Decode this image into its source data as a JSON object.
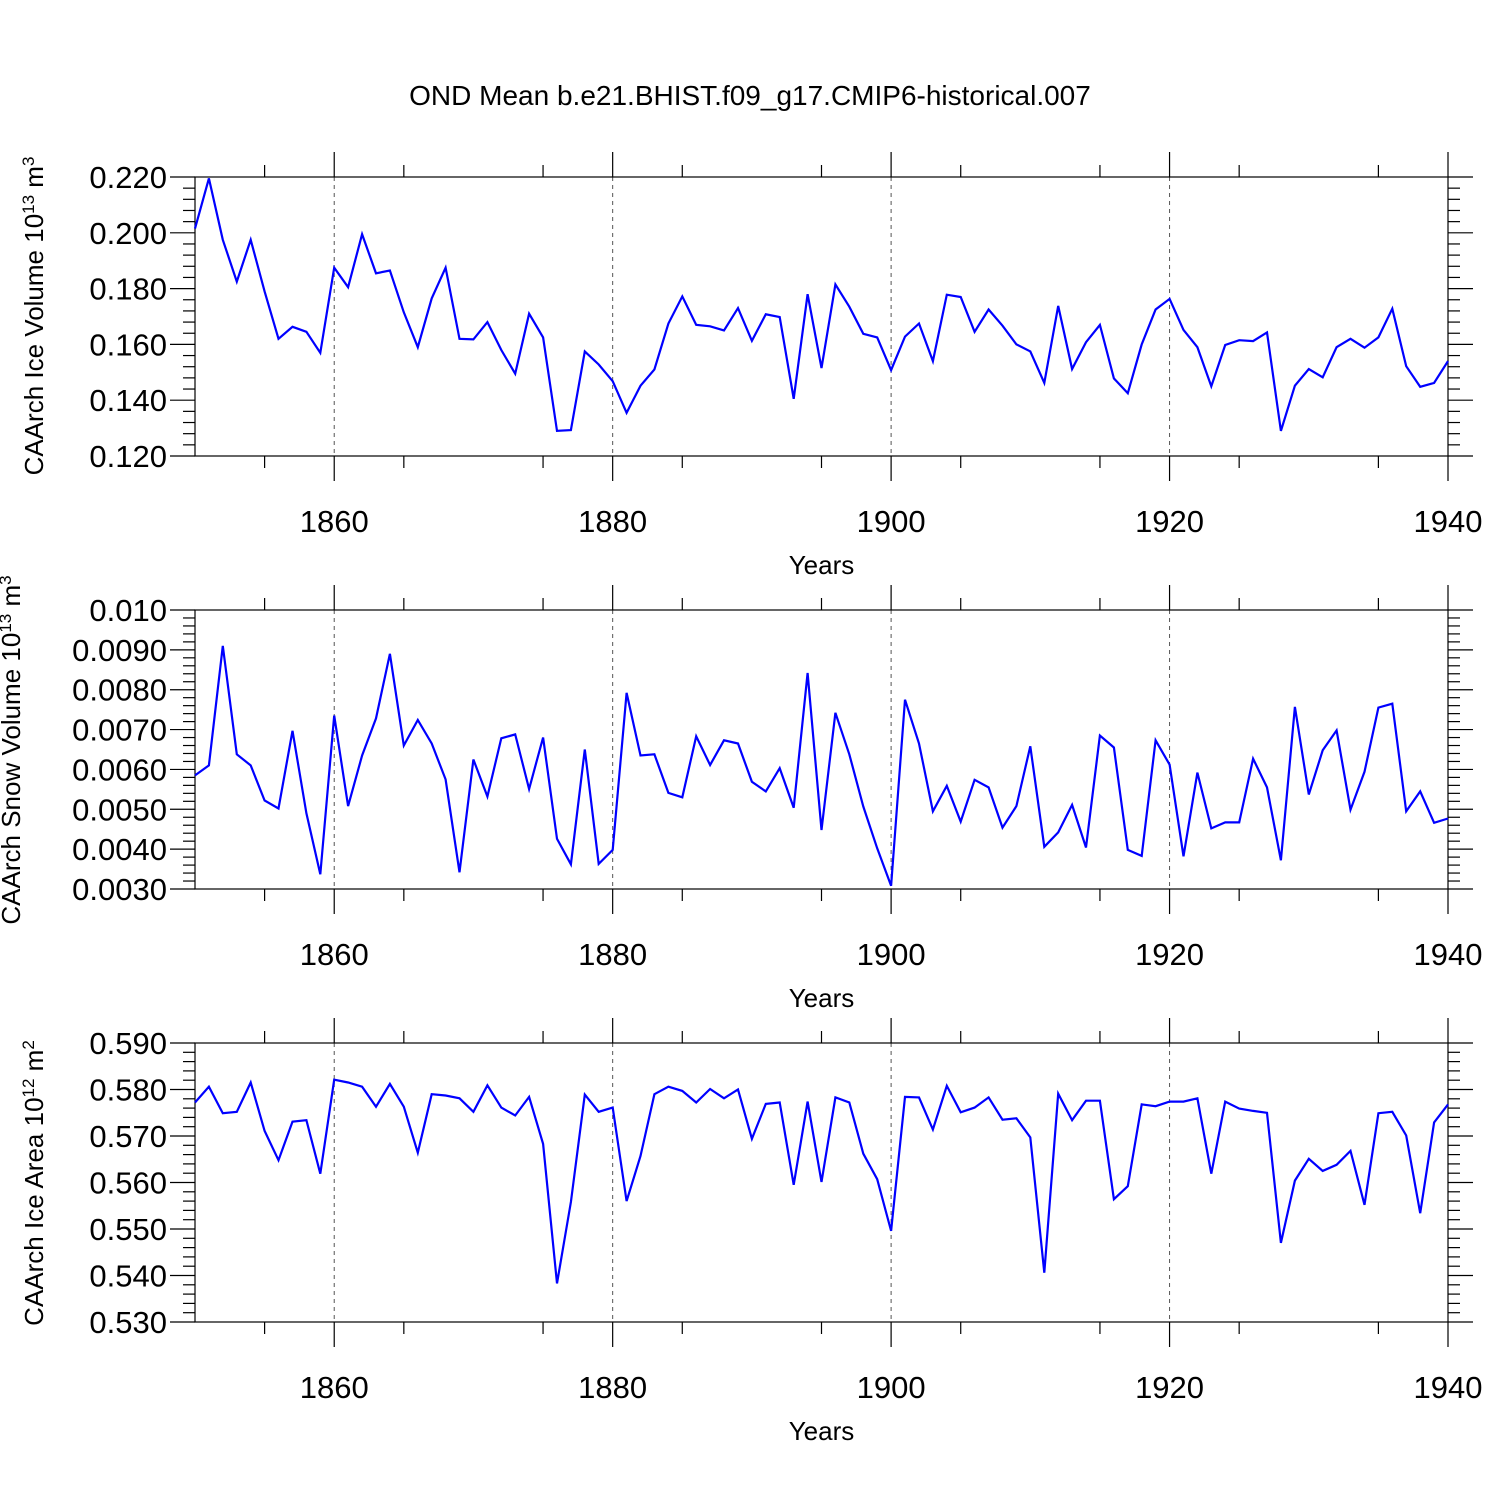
{
  "title": "OND Mean b.e21.BHIST.f09_g17.CMIP6-historical.007",
  "chart_data": [
    {
      "type": "line",
      "name": "ice-volume",
      "ylabel": "CAArch Ice Volume 10",
      "ylabel_exp": "13",
      "ylabel_unit": " m",
      "ylabel_unit_exp": "3",
      "xlabel": "Years",
      "xlim": [
        1850,
        1940
      ],
      "ylim": [
        0.12,
        0.22
      ],
      "x_ticks": [
        1860,
        1880,
        1900,
        1920,
        1940
      ],
      "x_tick_labels": [
        "1860",
        "1880",
        "1900",
        "1920",
        "1940"
      ],
      "y_ticks": [
        0.12,
        0.14,
        0.16,
        0.18,
        0.2,
        0.22
      ],
      "y_tick_labels": [
        "0.120",
        "0.140",
        "0.160",
        "0.180",
        "0.200",
        "0.220"
      ],
      "color": "#0000ff",
      "x_start": 1850,
      "values": [
        0.2015,
        0.2195,
        0.1975,
        0.1825,
        0.1975,
        0.179,
        0.162,
        0.1663,
        0.1645,
        0.157,
        0.1875,
        0.1805,
        0.1995,
        0.1855,
        0.1865,
        0.1715,
        0.159,
        0.1765,
        0.1875,
        0.162,
        0.1618,
        0.168,
        0.158,
        0.1495,
        0.171,
        0.1625,
        0.129,
        0.1293,
        0.1575,
        0.1528,
        0.1468,
        0.1355,
        0.1452,
        0.151,
        0.1675,
        0.1772,
        0.167,
        0.1665,
        0.165,
        0.173,
        0.1613,
        0.1708,
        0.1698,
        0.1405,
        0.178,
        0.1515,
        0.1815,
        0.1735,
        0.1638,
        0.1625,
        0.1508,
        0.1628,
        0.1675,
        0.154,
        0.1778,
        0.177,
        0.1645,
        0.1725,
        0.1667,
        0.16,
        0.1575,
        0.1462,
        0.1738,
        0.1512,
        0.1608,
        0.167,
        0.1478,
        0.1425,
        0.16,
        0.1725,
        0.1763,
        0.1652,
        0.159,
        0.145,
        0.1598,
        0.1615,
        0.1612,
        0.1643,
        0.129,
        0.1452,
        0.1512,
        0.1482,
        0.159,
        0.162,
        0.1588,
        0.1625,
        0.1728,
        0.1522,
        0.1448,
        0.1462,
        0.154
      ]
    },
    {
      "type": "line",
      "name": "snow-volume",
      "ylabel": "CAArch Snow Volume 10",
      "ylabel_exp": "13",
      "ylabel_unit": " m",
      "ylabel_unit_exp": "3",
      "xlabel": "Years",
      "xlim": [
        1850,
        1940
      ],
      "ylim": [
        0.003,
        0.01
      ],
      "x_ticks": [
        1860,
        1880,
        1900,
        1920,
        1940
      ],
      "x_tick_labels": [
        "1860",
        "1880",
        "1900",
        "1920",
        "1940"
      ],
      "y_ticks": [
        0.003,
        0.004,
        0.005,
        0.006,
        0.007,
        0.008,
        0.009,
        0.01
      ],
      "y_tick_labels": [
        "0.0030",
        "0.0040",
        "0.0050",
        "0.0060",
        "0.0070",
        "0.0080",
        "0.0090",
        "0.010"
      ],
      "color": "#0000ff",
      "x_start": 1850,
      "values": [
        0.00585,
        0.0061,
        0.0091,
        0.00638,
        0.0061,
        0.00522,
        0.00502,
        0.00697,
        0.0049,
        0.00337,
        0.00735,
        0.00508,
        0.00635,
        0.00728,
        0.0089,
        0.0066,
        0.00724,
        0.00665,
        0.00575,
        0.00342,
        0.00625,
        0.00532,
        0.00678,
        0.00688,
        0.00551,
        0.0068,
        0.00426,
        0.00362,
        0.0065,
        0.00363,
        0.00398,
        0.00792,
        0.00635,
        0.00638,
        0.00541,
        0.0053,
        0.00683,
        0.00611,
        0.00673,
        0.00665,
        0.00569,
        0.00545,
        0.00603,
        0.00504,
        0.00842,
        0.00448,
        0.00742,
        0.00638,
        0.00507,
        0.00402,
        0.00308,
        0.00775,
        0.00665,
        0.00495,
        0.00559,
        0.00469,
        0.00574,
        0.00555,
        0.00454,
        0.00508,
        0.00658,
        0.00406,
        0.00442,
        0.00511,
        0.00404,
        0.00685,
        0.00655,
        0.00398,
        0.00383,
        0.00673,
        0.00612,
        0.00382,
        0.00592,
        0.00452,
        0.00467,
        0.00467,
        0.00627,
        0.00555,
        0.00372,
        0.00757,
        0.00537,
        0.00648,
        0.00698,
        0.00499,
        0.00594,
        0.00755,
        0.00765,
        0.00495,
        0.00545,
        0.00466,
        0.00477
      ]
    },
    {
      "type": "line",
      "name": "ice-area",
      "ylabel": "CAArch Ice Area 10",
      "ylabel_exp": "12",
      "ylabel_unit": " m",
      "ylabel_unit_exp": "2",
      "xlabel": "Years",
      "xlim": [
        1850,
        1940
      ],
      "ylim": [
        0.53,
        0.59
      ],
      "x_ticks": [
        1860,
        1880,
        1900,
        1920,
        1940
      ],
      "x_tick_labels": [
        "1860",
        "1880",
        "1900",
        "1920",
        "1940"
      ],
      "y_ticks": [
        0.53,
        0.54,
        0.55,
        0.56,
        0.57,
        0.58,
        0.59
      ],
      "y_tick_labels": [
        "0.530",
        "0.540",
        "0.550",
        "0.560",
        "0.570",
        "0.580",
        "0.590"
      ],
      "color": "#0000ff",
      "x_start": 1850,
      "values": [
        0.5772,
        0.5806,
        0.5749,
        0.5752,
        0.5815,
        0.5711,
        0.5648,
        0.5731,
        0.5734,
        0.5619,
        0.5821,
        0.5815,
        0.5806,
        0.5763,
        0.5812,
        0.5763,
        0.5664,
        0.579,
        0.5787,
        0.5781,
        0.5752,
        0.5809,
        0.5761,
        0.5744,
        0.5784,
        0.5683,
        0.5383,
        0.5558,
        0.5789,
        0.5752,
        0.5761,
        0.556,
        0.5657,
        0.579,
        0.5806,
        0.5797,
        0.5772,
        0.5801,
        0.5781,
        0.58,
        0.5694,
        0.5769,
        0.5772,
        0.5595,
        0.5774,
        0.5601,
        0.5783,
        0.5772,
        0.5662,
        0.5607,
        0.5496,
        0.5784,
        0.5783,
        0.5714,
        0.5808,
        0.5751,
        0.5761,
        0.5783,
        0.5735,
        0.5738,
        0.5697,
        0.5406,
        0.5791,
        0.5734,
        0.5776,
        0.5776,
        0.5564,
        0.5592,
        0.5768,
        0.5764,
        0.5774,
        0.5774,
        0.5781,
        0.5619,
        0.5774,
        0.5759,
        0.5754,
        0.575,
        0.547,
        0.5604,
        0.5651,
        0.5625,
        0.5638,
        0.5668,
        0.5552,
        0.5749,
        0.5752,
        0.5701,
        0.5534,
        0.5729,
        0.5768
      ]
    }
  ]
}
